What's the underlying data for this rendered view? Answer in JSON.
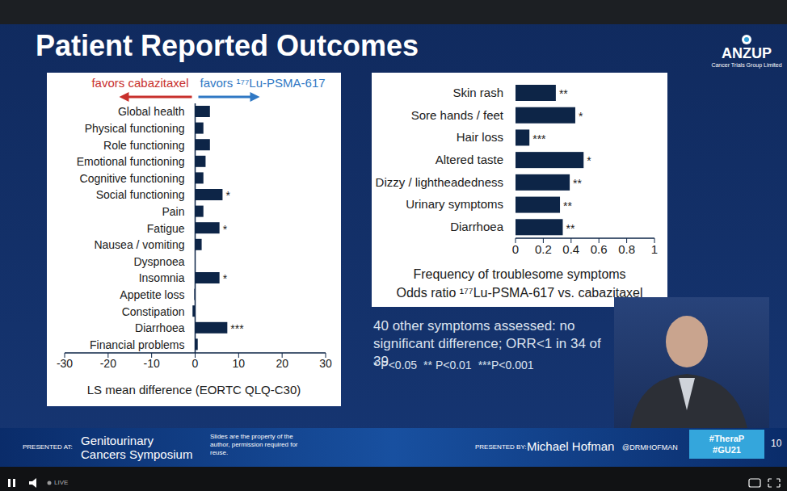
{
  "slide": {
    "title": "Patient Reported Outcomes",
    "logo": {
      "name": "ANZUP",
      "tagline": "Cancer Trials Group Limited"
    },
    "note": "40 other symptoms assessed: no significant difference; ORR<1 in 34 of 39",
    "p_value_key": [
      "* P<0.05",
      "** P<0.01",
      "***P<0.001"
    ],
    "footer": {
      "presented_at_label": "PRESENTED AT:",
      "meeting": "Genitourinary Cancers Symposium",
      "rights": "Slides are the property of the author, permission required for reuse.",
      "presented_by_label": "PRESENTED BY:",
      "presenter": "Michael Hofman",
      "handle": "@DRMHOFMAN",
      "hashtags": [
        "#TheraP",
        "#GU21"
      ],
      "slide_number": 10
    },
    "player": {
      "status": "LIVE"
    }
  },
  "chart_data": [
    {
      "type": "bar",
      "orientation": "horizontal",
      "direction_labels": {
        "left": "favors cabazitaxel",
        "right": "favors ¹⁷⁷Lu-PSMA-617"
      },
      "categories": [
        "Global health",
        "Physical functioning",
        "Role functioning",
        "Emotional functioning",
        "Cognitive functioning",
        "Social functioning",
        "Pain",
        "Fatigue",
        "Nausea / vomiting",
        "Dyspnoea",
        "Insomnia",
        "Appetite loss",
        "Constipation",
        "Diarrhoea",
        "Financial problems"
      ],
      "values": [
        3.4,
        1.9,
        3.4,
        2.4,
        1.9,
        6.3,
        1.9,
        5.6,
        1.5,
        0,
        5.6,
        -0.2,
        -0.6,
        7.4,
        0.6
      ],
      "significance": [
        null,
        null,
        null,
        null,
        null,
        "*",
        null,
        "*",
        null,
        null,
        "*",
        null,
        null,
        "***",
        null
      ],
      "color": "#0d2547",
      "xlabel": "LS mean difference (EORTC QLQ-C30)",
      "xlim": [
        -30,
        30
      ],
      "xticks": [
        -30,
        -20,
        -10,
        0,
        10,
        20,
        30
      ],
      "grid": false
    },
    {
      "type": "bar",
      "orientation": "horizontal",
      "categories": [
        "Skin rash",
        "Sore hands / feet",
        "Hair loss",
        "Altered taste",
        "Dizzy / lightheadedness",
        "Urinary symptoms",
        "Diarrhoea"
      ],
      "values": [
        0.29,
        0.43,
        0.1,
        0.49,
        0.39,
        0.32,
        0.34
      ],
      "significance": [
        "**",
        "*",
        "***",
        "*",
        "**",
        "**",
        "**"
      ],
      "color": "#0d2547",
      "xlabel": [
        "Frequency of troublesome symptoms",
        "Odds ratio ¹⁷⁷Lu-PSMA-617 vs. cabazitaxel"
      ],
      "xlim": [
        0,
        1
      ],
      "xticks": [
        0,
        0.2,
        0.4,
        0.6,
        0.8,
        1
      ],
      "grid": false
    }
  ]
}
